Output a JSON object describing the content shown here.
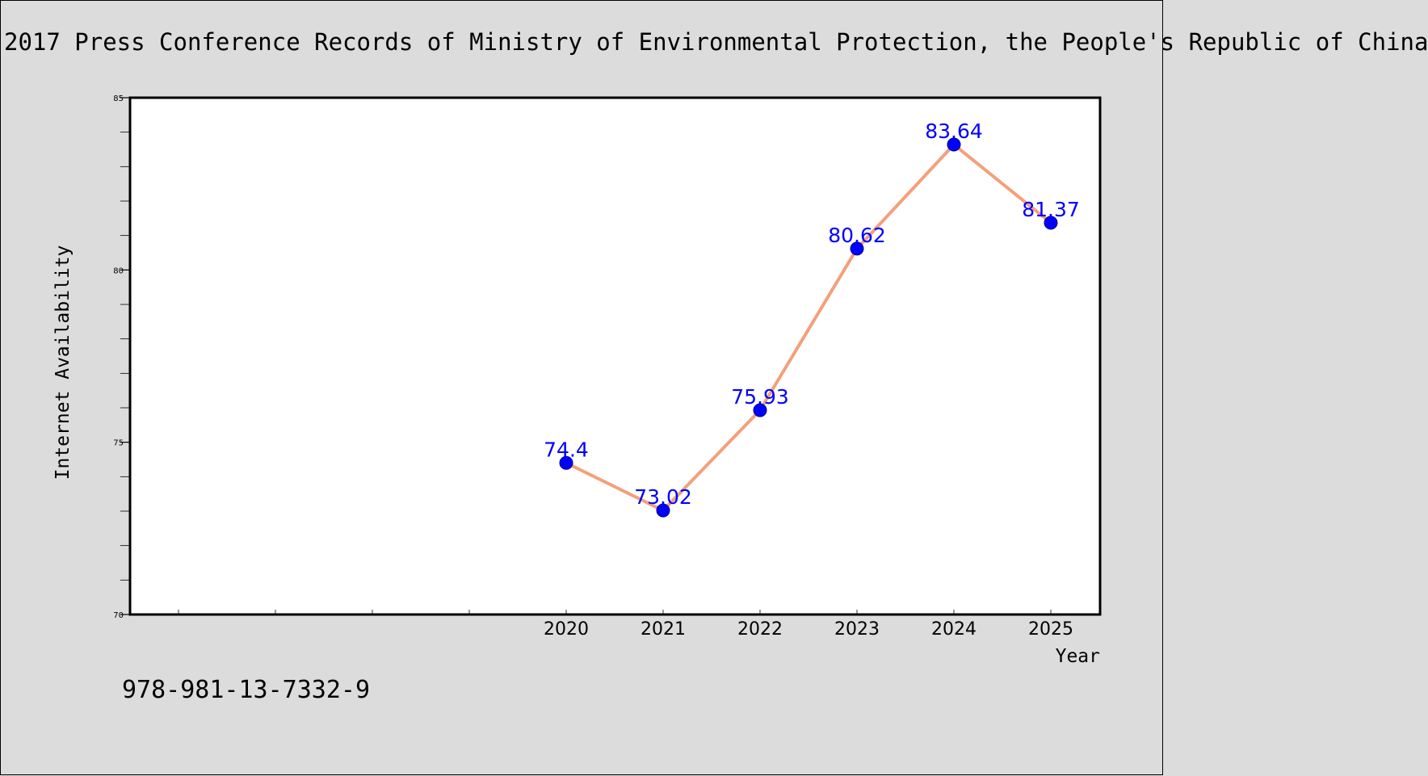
{
  "chart_data": {
    "type": "line",
    "title": "2017 Press Conference Records of Ministry of Environmental Protection, the People's Republic of China",
    "xlabel": "Year",
    "ylabel": "Internet Availability",
    "x": [
      "2020",
      "2021",
      "2022",
      "2023",
      "2024",
      "2025"
    ],
    "series": [
      {
        "values": [
          74.4,
          73.02,
          75.93,
          80.62,
          83.64,
          81.37
        ]
      }
    ],
    "data_labels": [
      "74.4",
      "73.02",
      "75.93",
      "80.62",
      "83.64",
      "81.37"
    ],
    "xlim_categories": [
      "2016",
      "2017",
      "2018",
      "2019",
      "2020",
      "2021",
      "2022",
      "2023",
      "2024",
      "2025"
    ],
    "ylim": [
      70,
      85
    ],
    "yticks": [
      70,
      75,
      80,
      85
    ],
    "grid": false,
    "legend": "none",
    "colors": {
      "line": "#f4a07a",
      "marker": "#0000ff",
      "data_label": "#0000ff",
      "background": "#dcdcdc",
      "plot_background": "#ffffff"
    }
  },
  "footer_note": "978-981-13-7332-9"
}
